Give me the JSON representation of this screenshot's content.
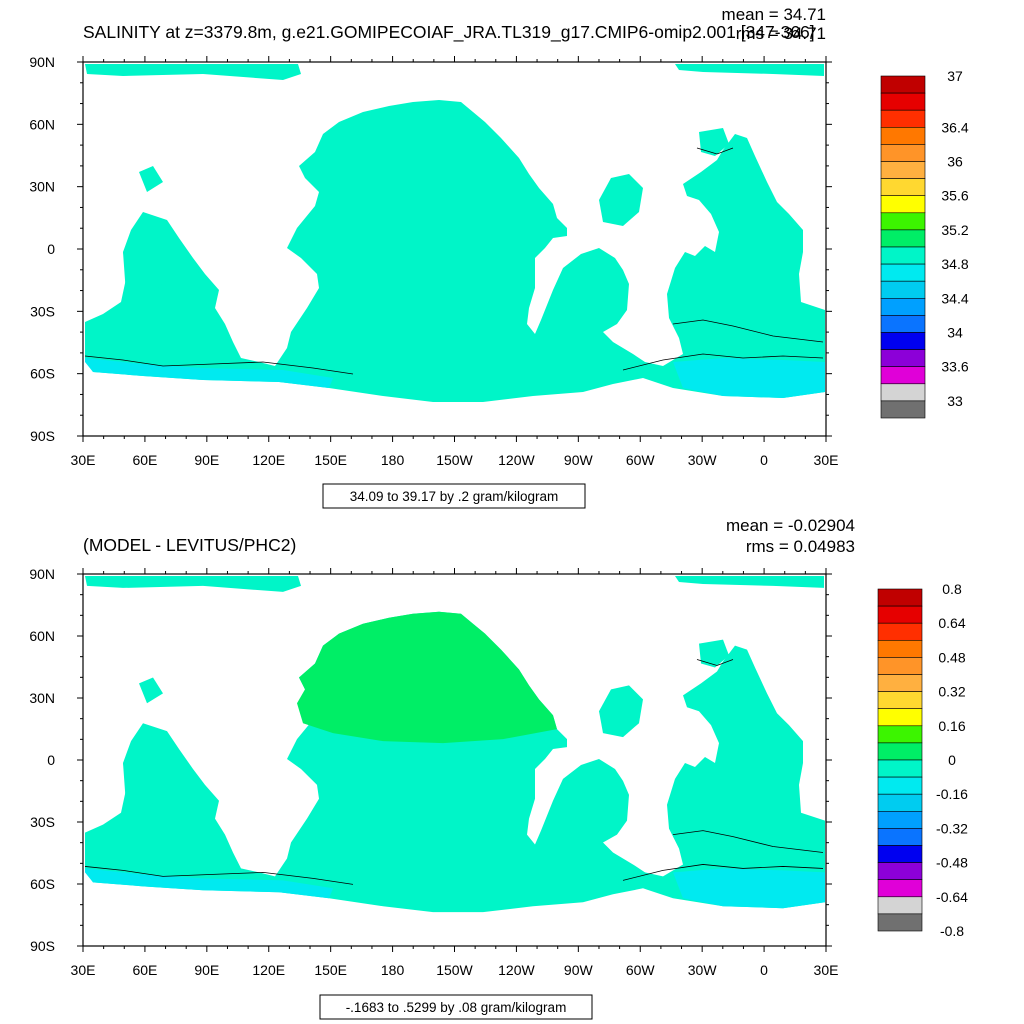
{
  "colors": {
    "land": "#ffffff",
    "frame": "#000000",
    "salinity_palette": [
      "#707070",
      "#d4d4d4",
      "#e000d8",
      "#8c00d8",
      "#0000f0",
      "#0a74ff",
      "#00a0ff",
      "#00ccf0",
      "#00eaf0",
      "#00f5c8",
      "#00ee66",
      "#3cf500",
      "#ffff00",
      "#ffd830",
      "#ffb040",
      "#ff9428",
      "#ff7800",
      "#ff2f00",
      "#e60000",
      "#c00000"
    ],
    "anomaly_palette": [
      "#707070",
      "#d4d4d4",
      "#e000d8",
      "#8c00d8",
      "#0000f0",
      "#0a74ff",
      "#00a0ff",
      "#00ccf0",
      "#00eaf0",
      "#00f5c8",
      "#00ee66",
      "#3cf500",
      "#ffff00",
      "#ffd830",
      "#ffb040",
      "#ff9428",
      "#ff7800",
      "#ff2f00",
      "#e60000",
      "#c00000"
    ]
  },
  "chart_data": [
    {
      "type": "heatmap",
      "title": "SALINITY at z=3379.8m, g.e21.GOMIPECOIAF_JRA.TL319_g17.CMIP6-omip2.001 [347-366]",
      "stats": {
        "mean": "mean = 34.71",
        "rms": "rms = 34.71"
      },
      "x_ticks": [
        "30E",
        "60E",
        "90E",
        "120E",
        "150E",
        "180",
        "150W",
        "120W",
        "90W",
        "60W",
        "30W",
        "0",
        "30E"
      ],
      "y_ticks": [
        "90N",
        "60N",
        "30N",
        "0",
        "30S",
        "60S",
        "90S"
      ],
      "x_range": [
        30,
        390
      ],
      "y_range": [
        -90,
        90
      ],
      "range_label": "34.09 to 39.17 by .2 gram/kilogram",
      "colorbar_labels": [
        "37",
        "36.4",
        "36",
        "35.6",
        "35.2",
        "34.8",
        "34.4",
        "34",
        "33.6",
        "33"
      ],
      "colorbar_label_slots": [
        0,
        3,
        5,
        7,
        9,
        11,
        13,
        15,
        17,
        19
      ],
      "color_levels": [
        33.0,
        33.2,
        33.4,
        33.6,
        33.8,
        34.0,
        34.2,
        34.4,
        34.6,
        34.8,
        35.0,
        35.2,
        35.4,
        35.6,
        35.8,
        36.0,
        36.2,
        36.4,
        36.6,
        37.0
      ],
      "dominant_values": {
        "ocean_interior": 34.9,
        "southern_ocean": 34.7,
        "north_atlantic": 35.0
      },
      "grid": false
    },
    {
      "type": "heatmap",
      "title": "(MODEL - LEVITUS/PHC2)",
      "stats": {
        "mean": "mean = -0.02904",
        "rms": "rms = 0.04983"
      },
      "x_ticks": [
        "30E",
        "60E",
        "90E",
        "120E",
        "150E",
        "180",
        "150W",
        "120W",
        "90W",
        "60W",
        "30W",
        "0",
        "30E"
      ],
      "y_ticks": [
        "90N",
        "60N",
        "30N",
        "0",
        "30S",
        "60S",
        "90S"
      ],
      "x_range": [
        30,
        390
      ],
      "y_range": [
        -90,
        90
      ],
      "range_label": "-.1683 to .5299 by .08 gram/kilogram",
      "colorbar_labels": [
        "0.8",
        "0.64",
        "0.48",
        "0.32",
        "0.16",
        "0",
        "-0.16",
        "-0.32",
        "-0.48",
        "-0.64",
        "-0.8"
      ],
      "colorbar_label_slots": [
        0,
        2,
        4,
        6,
        8,
        10,
        12,
        14,
        16,
        18,
        20
      ],
      "color_levels": [
        -0.8,
        -0.72,
        -0.64,
        -0.56,
        -0.48,
        -0.4,
        -0.32,
        -0.24,
        -0.16,
        -0.08,
        0,
        0.08,
        0.16,
        0.24,
        0.32,
        0.4,
        0.48,
        0.56,
        0.64,
        0.72,
        0.8
      ],
      "dominant_values": {
        "north_pacific": 0.04,
        "ocean_interior": -0.04,
        "southern_ocean": -0.1
      },
      "grid": false
    }
  ]
}
